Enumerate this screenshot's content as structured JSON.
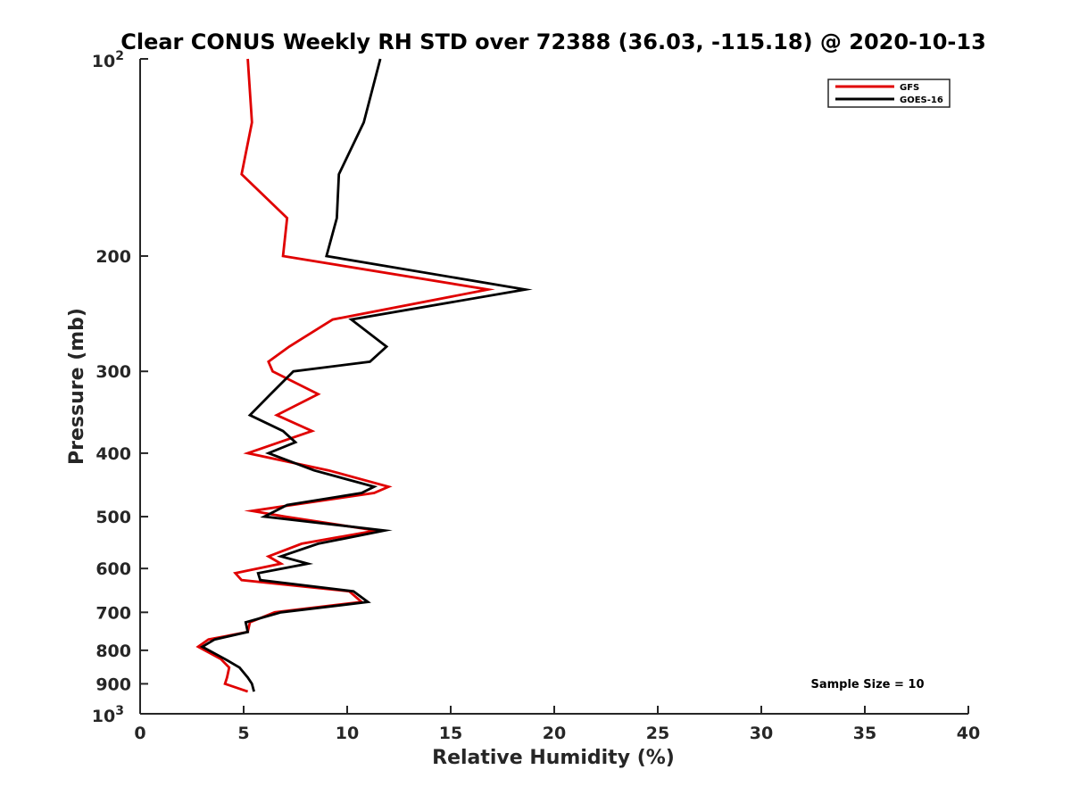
{
  "chart_data": {
    "type": "line",
    "title": "Clear CONUS Weekly RH STD over 72388 (36.03, -115.18) @ 2020-10-13",
    "xlabel": "Relative Humidity (%)",
    "ylabel": "Pressure (mb)",
    "xlim": [
      0,
      40
    ],
    "ylim": [
      100,
      1000
    ],
    "y_scale": "log",
    "y_reversed": true,
    "grid": false,
    "legend_position": "top-right",
    "annotation": "Sample Size = 10",
    "x_ticks": [
      {
        "value": 0,
        "label": "0"
      },
      {
        "value": 5,
        "label": "5"
      },
      {
        "value": 10,
        "label": "10"
      },
      {
        "value": 15,
        "label": "15"
      },
      {
        "value": 20,
        "label": "20"
      },
      {
        "value": 25,
        "label": "25"
      },
      {
        "value": 30,
        "label": "30"
      },
      {
        "value": 35,
        "label": "35"
      },
      {
        "value": 40,
        "label": "40"
      }
    ],
    "y_ticks": [
      {
        "value": 100,
        "base": "10",
        "exp": "2"
      },
      {
        "value": 200,
        "base": "200",
        "exp": ""
      },
      {
        "value": 300,
        "base": "300",
        "exp": ""
      },
      {
        "value": 400,
        "base": "400",
        "exp": ""
      },
      {
        "value": 500,
        "base": "500",
        "exp": ""
      },
      {
        "value": 600,
        "base": "600",
        "exp": ""
      },
      {
        "value": 700,
        "base": "700",
        "exp": ""
      },
      {
        "value": 800,
        "base": "800",
        "exp": ""
      },
      {
        "value": 900,
        "base": "900",
        "exp": ""
      },
      {
        "value": 1000,
        "base": "10",
        "exp": "3"
      }
    ],
    "series": [
      {
        "name": "GFS",
        "color": "#e00000",
        "points": [
          {
            "p": 100,
            "rh": 5.2
          },
          {
            "p": 125,
            "rh": 5.4
          },
          {
            "p": 150,
            "rh": 4.9
          },
          {
            "p": 175,
            "rh": 7.1
          },
          {
            "p": 200,
            "rh": 6.9
          },
          {
            "p": 225,
            "rh": 16.8
          },
          {
            "p": 250,
            "rh": 9.3
          },
          {
            "p": 275,
            "rh": 7.2
          },
          {
            "p": 290,
            "rh": 6.2
          },
          {
            "p": 300,
            "rh": 6.4
          },
          {
            "p": 325,
            "rh": 8.6
          },
          {
            "p": 350,
            "rh": 6.6
          },
          {
            "p": 370,
            "rh": 8.3
          },
          {
            "p": 400,
            "rh": 5.2
          },
          {
            "p": 425,
            "rh": 9.1
          },
          {
            "p": 450,
            "rh": 12.0
          },
          {
            "p": 460,
            "rh": 11.3
          },
          {
            "p": 490,
            "rh": 5.4
          },
          {
            "p": 500,
            "rh": 7.0
          },
          {
            "p": 525,
            "rh": 11.4
          },
          {
            "p": 550,
            "rh": 7.8
          },
          {
            "p": 575,
            "rh": 6.2
          },
          {
            "p": 590,
            "rh": 6.8
          },
          {
            "p": 610,
            "rh": 4.6
          },
          {
            "p": 625,
            "rh": 4.9
          },
          {
            "p": 650,
            "rh": 10.1
          },
          {
            "p": 675,
            "rh": 10.7
          },
          {
            "p": 700,
            "rh": 6.5
          },
          {
            "p": 725,
            "rh": 5.3
          },
          {
            "p": 750,
            "rh": 5.2
          },
          {
            "p": 770,
            "rh": 3.3
          },
          {
            "p": 790,
            "rh": 2.8
          },
          {
            "p": 825,
            "rh": 3.9
          },
          {
            "p": 850,
            "rh": 4.3
          },
          {
            "p": 880,
            "rh": 4.2
          },
          {
            "p": 900,
            "rh": 4.1
          },
          {
            "p": 925,
            "rh": 5.2
          }
        ]
      },
      {
        "name": "GOES-16",
        "color": "#000000",
        "points": [
          {
            "p": 100,
            "rh": 11.6
          },
          {
            "p": 125,
            "rh": 10.8
          },
          {
            "p": 150,
            "rh": 9.6
          },
          {
            "p": 175,
            "rh": 9.5
          },
          {
            "p": 200,
            "rh": 9.0
          },
          {
            "p": 225,
            "rh": 18.6
          },
          {
            "p": 250,
            "rh": 10.2
          },
          {
            "p": 275,
            "rh": 11.9
          },
          {
            "p": 290,
            "rh": 11.1
          },
          {
            "p": 300,
            "rh": 7.4
          },
          {
            "p": 325,
            "rh": 6.3
          },
          {
            "p": 350,
            "rh": 5.3
          },
          {
            "p": 370,
            "rh": 6.9
          },
          {
            "p": 385,
            "rh": 7.5
          },
          {
            "p": 400,
            "rh": 6.2
          },
          {
            "p": 425,
            "rh": 8.4
          },
          {
            "p": 450,
            "rh": 11.3
          },
          {
            "p": 460,
            "rh": 10.7
          },
          {
            "p": 480,
            "rh": 7.1
          },
          {
            "p": 500,
            "rh": 6.0
          },
          {
            "p": 525,
            "rh": 11.8
          },
          {
            "p": 550,
            "rh": 8.6
          },
          {
            "p": 575,
            "rh": 6.8
          },
          {
            "p": 590,
            "rh": 8.1
          },
          {
            "p": 610,
            "rh": 5.7
          },
          {
            "p": 625,
            "rh": 5.8
          },
          {
            "p": 650,
            "rh": 10.3
          },
          {
            "p": 675,
            "rh": 11.0
          },
          {
            "p": 700,
            "rh": 6.8
          },
          {
            "p": 725,
            "rh": 5.1
          },
          {
            "p": 750,
            "rh": 5.2
          },
          {
            "p": 770,
            "rh": 3.6
          },
          {
            "p": 790,
            "rh": 3.0
          },
          {
            "p": 825,
            "rh": 4.1
          },
          {
            "p": 850,
            "rh": 4.8
          },
          {
            "p": 880,
            "rh": 5.2
          },
          {
            "p": 900,
            "rh": 5.4
          },
          {
            "p": 925,
            "rh": 5.5
          }
        ]
      }
    ]
  }
}
